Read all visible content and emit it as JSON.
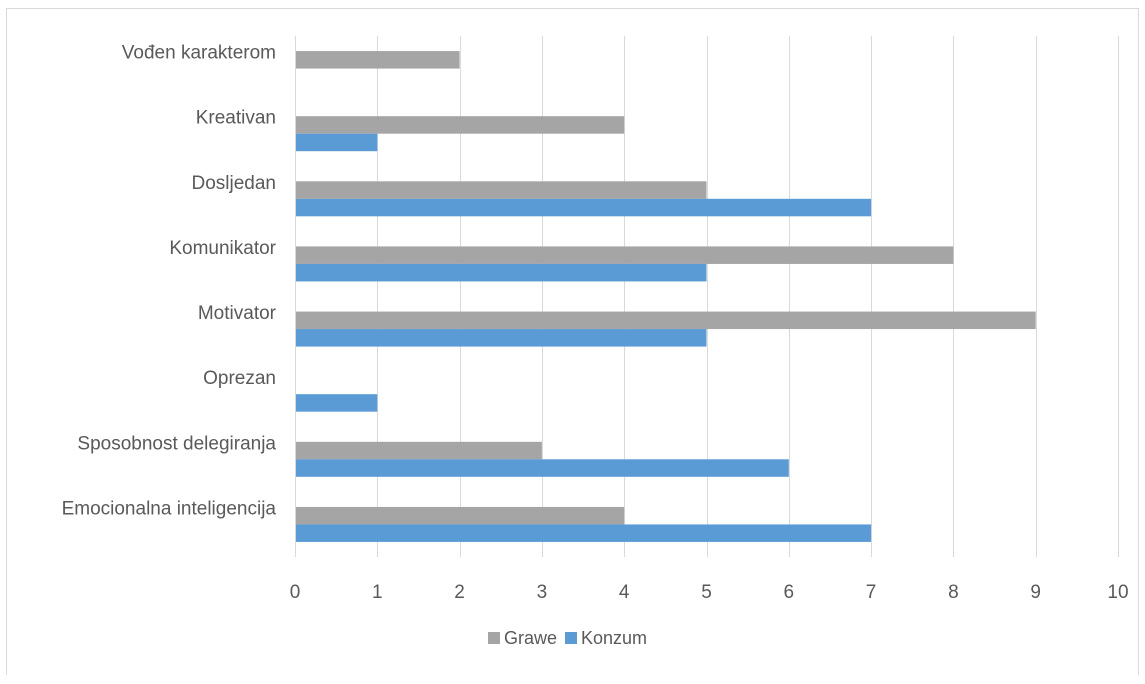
{
  "chart_data": {
    "type": "bar",
    "orientation": "horizontal",
    "categories": [
      "Vođen karakterom",
      "Kreativan",
      "Dosljedan",
      "Komunikator",
      "Motivator",
      "Oprezan",
      "Sposobnost delegiranja",
      "Emocionalna inteligencija"
    ],
    "series": [
      {
        "name": "Grawe",
        "color": "#a5a5a5",
        "values": [
          2,
          4,
          5,
          8,
          9,
          0,
          3,
          4
        ]
      },
      {
        "name": "Konzum",
        "color": "#5b9bd5",
        "values": [
          0,
          1,
          7,
          5,
          5,
          1,
          6,
          7
        ]
      }
    ],
    "xlim": [
      0,
      10
    ],
    "xticks": [
      "0",
      "1",
      "2",
      "3",
      "4",
      "5",
      "6",
      "7",
      "8",
      "9",
      "10"
    ],
    "title": "",
    "xlabel": "",
    "ylabel": "",
    "grid": "vertical",
    "legend": "bottom"
  }
}
